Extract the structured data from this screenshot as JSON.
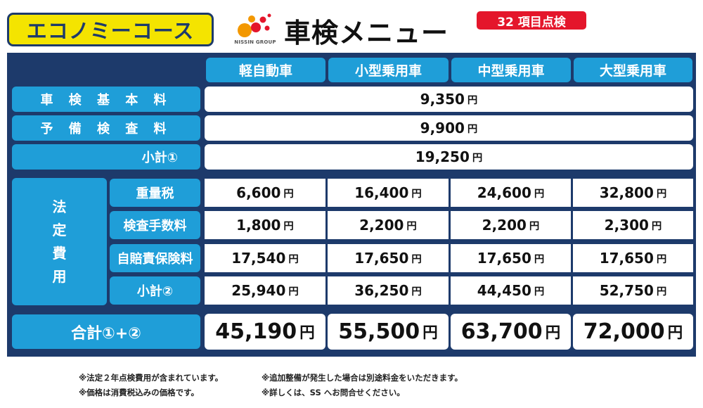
{
  "header": {
    "course": "エコノミーコース",
    "logo_text": "NISSIN GROUP",
    "title": "車検メニュー",
    "badge": "32 項目点検"
  },
  "columns": [
    "軽自動車",
    "小型乗用車",
    "中型乗用車",
    "大型乗用車"
  ],
  "basic_rows": [
    {
      "label": "車 検 基 本 料",
      "value": "9,350"
    },
    {
      "label": "予 備 検 査 料",
      "value": "9,900"
    },
    {
      "label": "小計①",
      "value": "19,250"
    }
  ],
  "legal": {
    "label_chars": [
      "法",
      "定",
      "費",
      "用"
    ],
    "rows": [
      {
        "label": "重量税",
        "values": [
          "6,600",
          "16,400",
          "24,600",
          "32,800"
        ]
      },
      {
        "label": "検査手数料",
        "values": [
          "1,800",
          "2,200",
          "2,200",
          "2,300"
        ]
      },
      {
        "label": "自賠責保険料",
        "values": [
          "17,540",
          "17,650",
          "17,650",
          "17,650"
        ]
      },
      {
        "label": "小計②",
        "values": [
          "25,940",
          "36,250",
          "44,450",
          "52,750"
        ]
      }
    ]
  },
  "total": {
    "label": "合計①+②",
    "values": [
      "45,190",
      "55,500",
      "63,700",
      "72,000"
    ]
  },
  "yen": "円",
  "notes": [
    "※法定２年点検費用が含まれています。",
    "※追加整備が発生した場合は別途料金をいただきます。",
    "※価格は消費税込みの価格です。",
    "※詳しくは、SS へお問合せください。"
  ],
  "colors": {
    "navy": "#1d3a6b",
    "cyan": "#1f9ed8",
    "yellow": "#f4e400",
    "red": "#e4162b"
  }
}
